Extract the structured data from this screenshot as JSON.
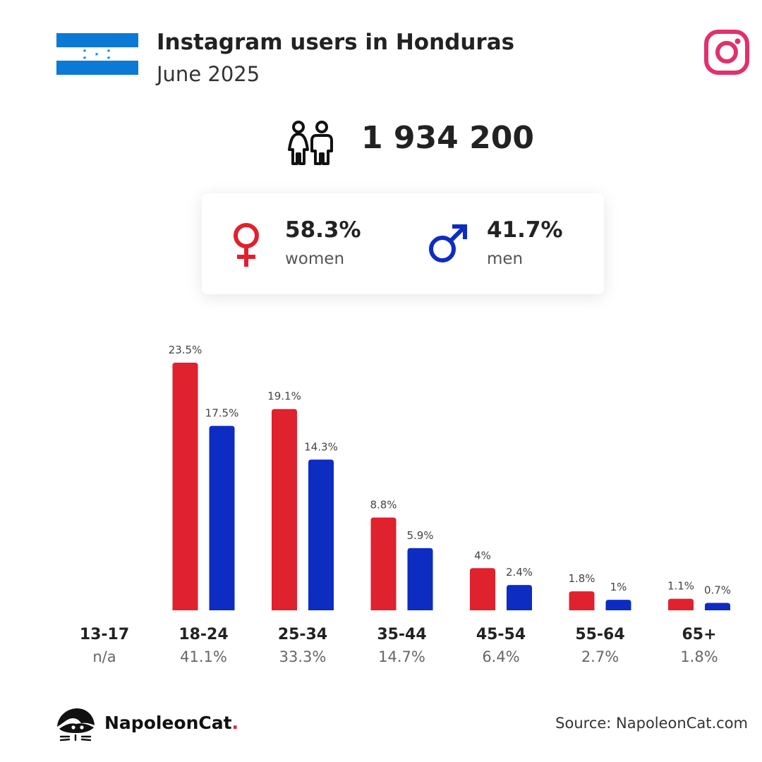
{
  "header": {
    "title": "Instagram users in Honduras",
    "subtitle": "June 2025"
  },
  "total_users": "1 934 200",
  "gender": {
    "women": {
      "pct": "58.3%",
      "label": "women",
      "color": "#e0212e"
    },
    "men": {
      "pct": "41.7%",
      "label": "men",
      "color": "#0d2cc2"
    }
  },
  "chart_data": {
    "type": "bar",
    "categories": [
      "13-17",
      "18-24",
      "25-34",
      "35-44",
      "45-54",
      "55-64",
      "65+"
    ],
    "category_shares": [
      "n/a",
      "41.1%",
      "33.3%",
      "14.7%",
      "6.4%",
      "2.7%",
      "1.8%"
    ],
    "series": [
      {
        "color": "#e0212e",
        "values": [
          null,
          23.5,
          19.1,
          8.8,
          4,
          1.8,
          1.1
        ],
        "labels": [
          "",
          "23.5%",
          "19.1%",
          "8.8%",
          "4%",
          "1.8%",
          "1.1%"
        ]
      },
      {
        "color": "#0d2cc2",
        "values": [
          null,
          17.5,
          14.3,
          5.9,
          2.4,
          1,
          0.7
        ],
        "labels": [
          "",
          "17.5%",
          "14.3%",
          "5.9%",
          "2.4%",
          "1%",
          "0.7%"
        ]
      }
    ],
    "ylim": [
      0,
      23.5
    ],
    "grid": false,
    "legend": "none"
  },
  "footer": {
    "brand_name": "NapoleonCat",
    "brand_dot": ".",
    "source": "Source: NapoleonCat.com"
  },
  "icons": {
    "flag": "honduras-flag-icon",
    "social": "instagram-icon",
    "people": "people-icon",
    "female": "female-symbol-icon",
    "male": "male-symbol-icon",
    "brand": "napoleoncat-logo-icon"
  },
  "colors": {
    "flag_blue": "#0b79d6",
    "instagram": "#e1306c"
  }
}
